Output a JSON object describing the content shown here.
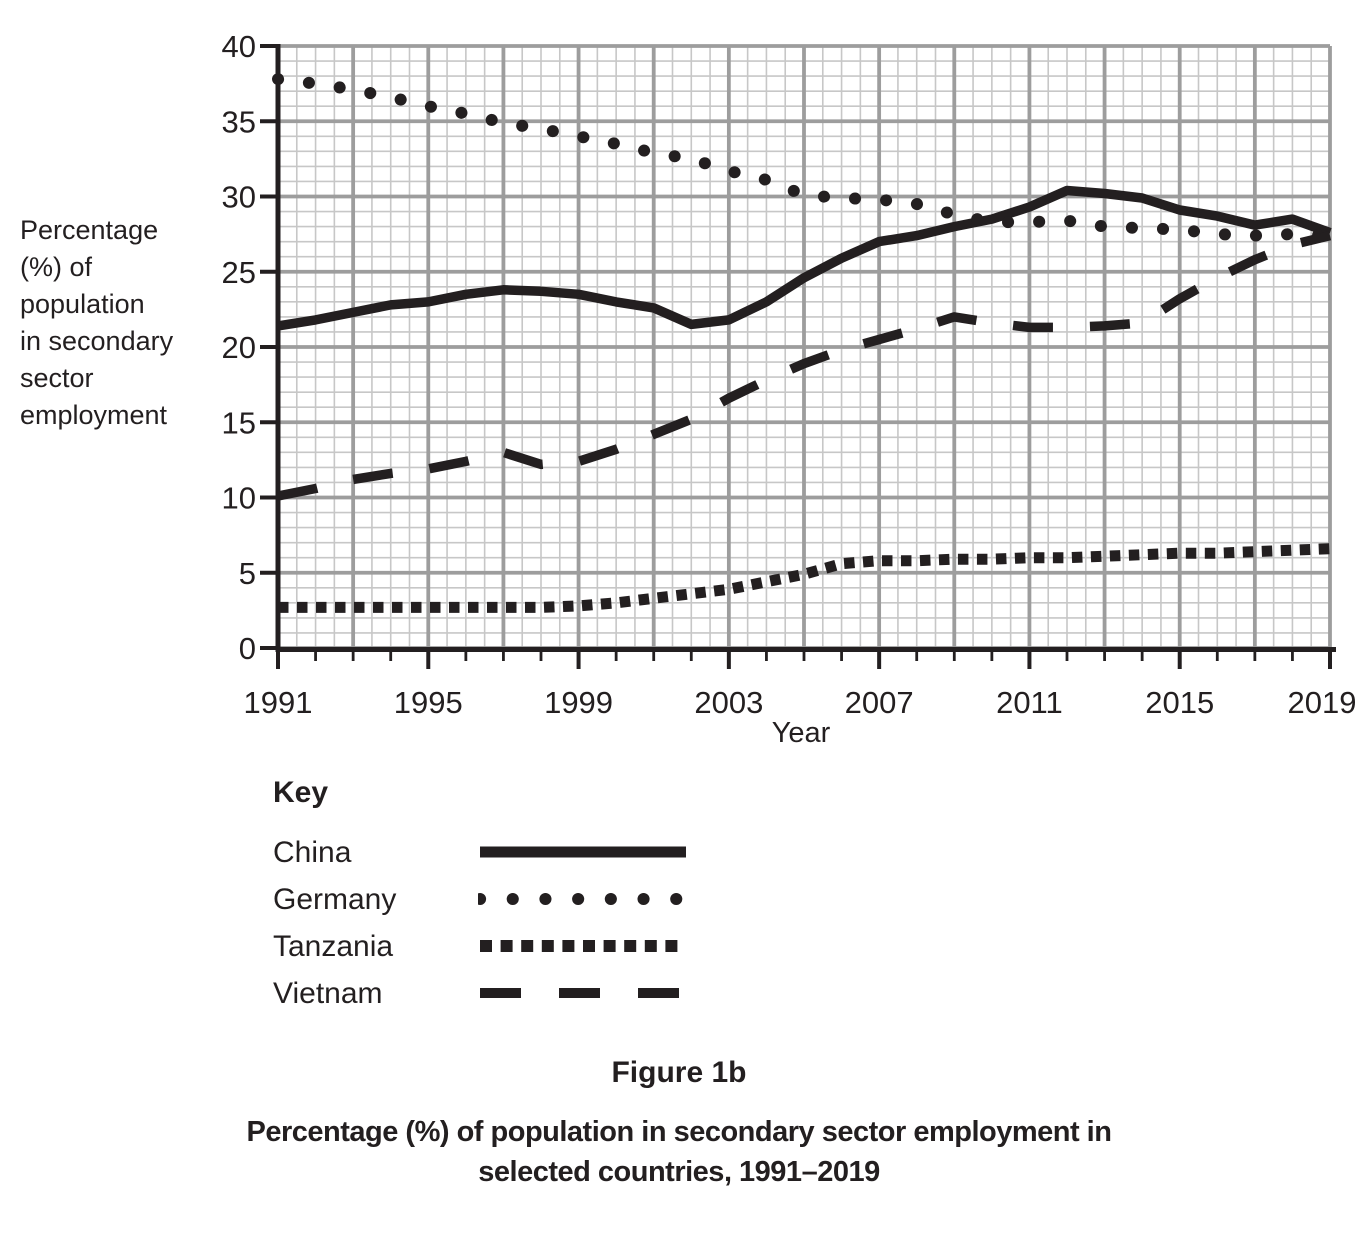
{
  "figure": {
    "figure_label": "Figure 1b",
    "caption_line1": "Percentage (%) of population in secondary sector employment in",
    "caption_line2": "selected countries, 1991–2019"
  },
  "key": {
    "title": "Key"
  },
  "chart_data": {
    "type": "line",
    "title": "Percentage (%) of population in secondary sector employment in selected countries, 1991–2019",
    "xlabel": "Year",
    "ylabel": "Percentage (%) of population in secondary sector employment",
    "ylabel_lines": [
      "Percentage",
      "(%) of",
      "population",
      "in secondary",
      "sector",
      "employment"
    ],
    "ylim": [
      0,
      40
    ],
    "y_tick_step": 5,
    "y_minor_step": 1,
    "x_start": 1991,
    "x_end": 2019,
    "x_tick_labels": [
      1991,
      1995,
      1999,
      2003,
      2007,
      2011,
      2015,
      2019
    ],
    "x_major_grid_every_years": 2,
    "x_minor_grid_every_years": 0.5,
    "grid": true,
    "legend_position": "below-left",
    "line_color": "#231f20",
    "grid_minor_color": "#c7c7c7",
    "grid_major_color": "#9d9d9d",
    "years": [
      1991,
      1992,
      1993,
      1994,
      1995,
      1996,
      1997,
      1998,
      1999,
      2000,
      2001,
      2002,
      2003,
      2004,
      2005,
      2006,
      2007,
      2008,
      2009,
      2010,
      2011,
      2012,
      2013,
      2014,
      2015,
      2016,
      2017,
      2018,
      2019
    ],
    "series": [
      {
        "name": "China",
        "style": "solid",
        "values": [
          21.4,
          21.8,
          22.3,
          22.8,
          23.0,
          23.5,
          23.8,
          23.7,
          23.5,
          23.0,
          22.6,
          21.5,
          21.8,
          23.0,
          24.6,
          25.9,
          27.0,
          27.4,
          28.0,
          28.5,
          29.3,
          30.4,
          30.2,
          29.9,
          29.1,
          28.7,
          28.1,
          28.5,
          27.6
        ]
      },
      {
        "name": "Germany",
        "style": "round-dot",
        "values": [
          37.8,
          37.5,
          37.1,
          36.6,
          36.0,
          35.5,
          34.9,
          34.5,
          34.0,
          33.5,
          32.9,
          32.5,
          31.7,
          31.1,
          30.1,
          29.9,
          29.8,
          29.5,
          28.8,
          28.3,
          28.3,
          28.4,
          28.0,
          27.9,
          27.8,
          27.5,
          27.4,
          27.5,
          27.4
        ]
      },
      {
        "name": "Tanzania",
        "style": "square-dot",
        "values": [
          2.7,
          2.7,
          2.7,
          2.7,
          2.7,
          2.7,
          2.7,
          2.7,
          2.8,
          3.0,
          3.3,
          3.6,
          3.9,
          4.4,
          4.9,
          5.6,
          5.8,
          5.8,
          5.9,
          5.9,
          6.0,
          6.0,
          6.1,
          6.2,
          6.3,
          6.3,
          6.4,
          6.5,
          6.6
        ]
      },
      {
        "name": "Vietnam",
        "style": "long-dash",
        "values": [
          10.1,
          10.6,
          11.2,
          11.6,
          11.9,
          12.4,
          13.0,
          12.2,
          12.4,
          13.2,
          14.2,
          15.2,
          16.6,
          17.8,
          18.9,
          19.8,
          20.5,
          21.2,
          22.0,
          21.6,
          21.3,
          21.3,
          21.4,
          21.6,
          23.2,
          24.6,
          25.8,
          26.8,
          27.4
        ]
      }
    ]
  }
}
